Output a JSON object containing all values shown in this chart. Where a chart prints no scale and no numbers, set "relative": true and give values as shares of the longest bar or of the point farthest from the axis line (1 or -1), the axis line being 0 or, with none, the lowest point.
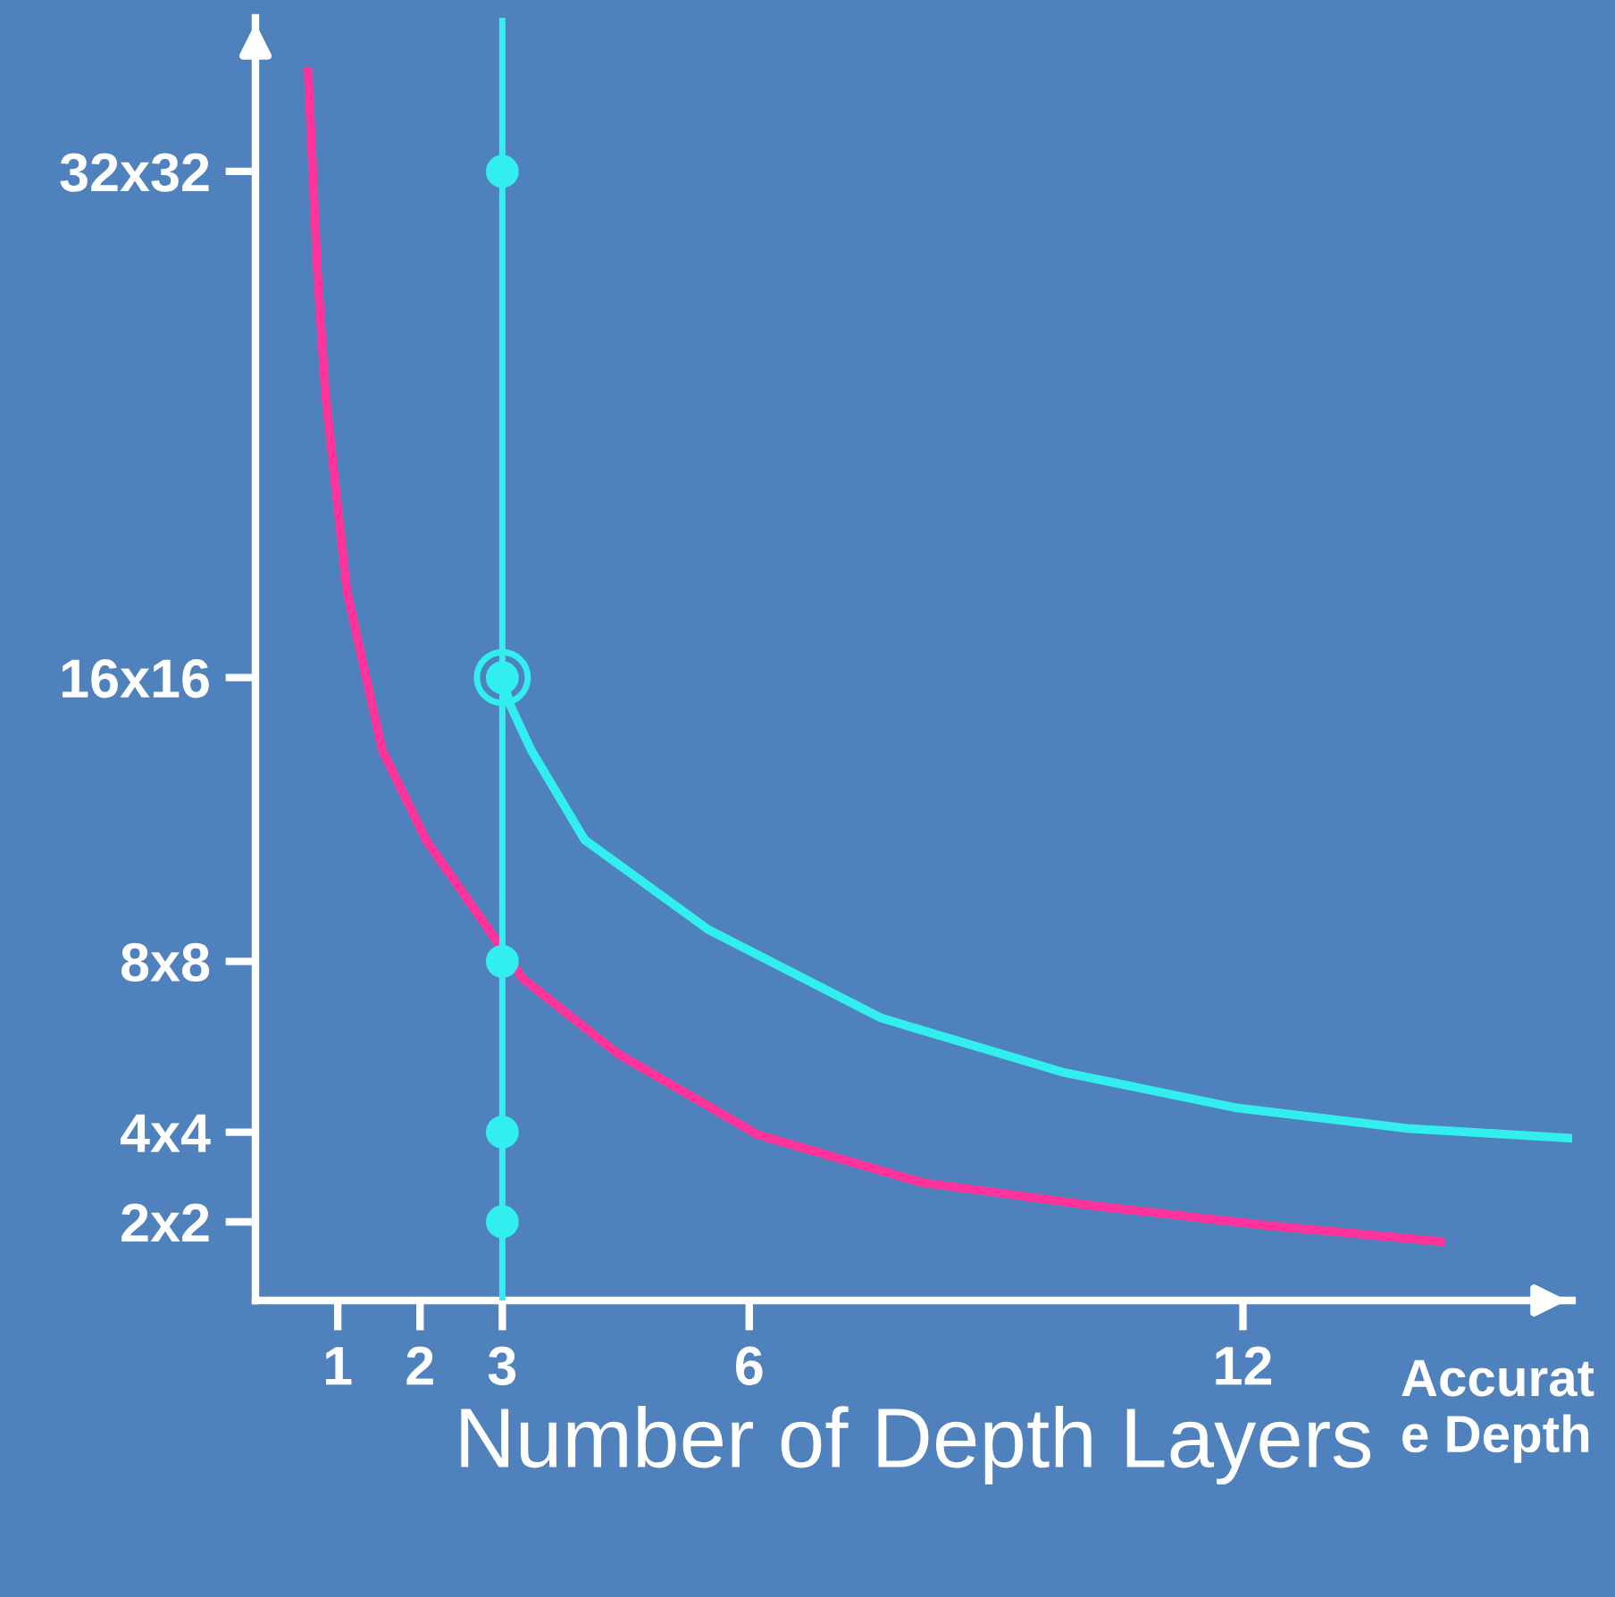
{
  "chart_data": {
    "type": "line",
    "relative": true,
    "xlabel": "Number of Depth Layers",
    "annotations": [
      "Accurat\ne Depth",
      "2x2",
      "4x4",
      "8x8",
      "16x16",
      "32x32"
    ],
    "xlim": [
      0,
      16
    ],
    "xticks": [
      1,
      2,
      3,
      6,
      12
    ],
    "ref_lines": [
      {
        "axis": "x",
        "value": 3,
        "color": "#33eeee",
        "line_style": "solid"
      }
    ],
    "series": [
      {
        "color": "#ff3399",
        "x": [
          0.64,
          0.75,
          0.85,
          1.11,
          1.54,
          2.07,
          3.25,
          4.4,
          6.1,
          8.1,
          10.2,
          12.3,
          14.4
        ],
        "values": [
          1,
          0.84,
          0.738,
          0.578,
          0.448,
          0.375,
          0.262,
          0.201,
          0.135,
          0.096,
          0.077,
          0.061,
          0.048
        ]
      },
      {
        "color": "#33eeee",
        "x": [
          3,
          3.1,
          3.35,
          4.0,
          5.5,
          7.6,
          9.8,
          11.9,
          14.0,
          16
        ],
        "values": [
          0.507,
          0.484,
          0.448,
          0.375,
          0.302,
          0.23,
          0.186,
          0.157,
          0.14,
          0.132
        ]
      },
      {
        "type": "scatter",
        "color": "#33eeee",
        "marker": "circle",
        "x": [
          3,
          3,
          3,
          3,
          3
        ],
        "values": [
          0.064,
          0.137,
          0.276,
          0.507,
          0.919
        ]
      },
      {
        "type": "scatter",
        "color": "#33eeee",
        "x": [
          3
        ],
        "values": [
          0.507
        ]
      }
    ]
  }
}
